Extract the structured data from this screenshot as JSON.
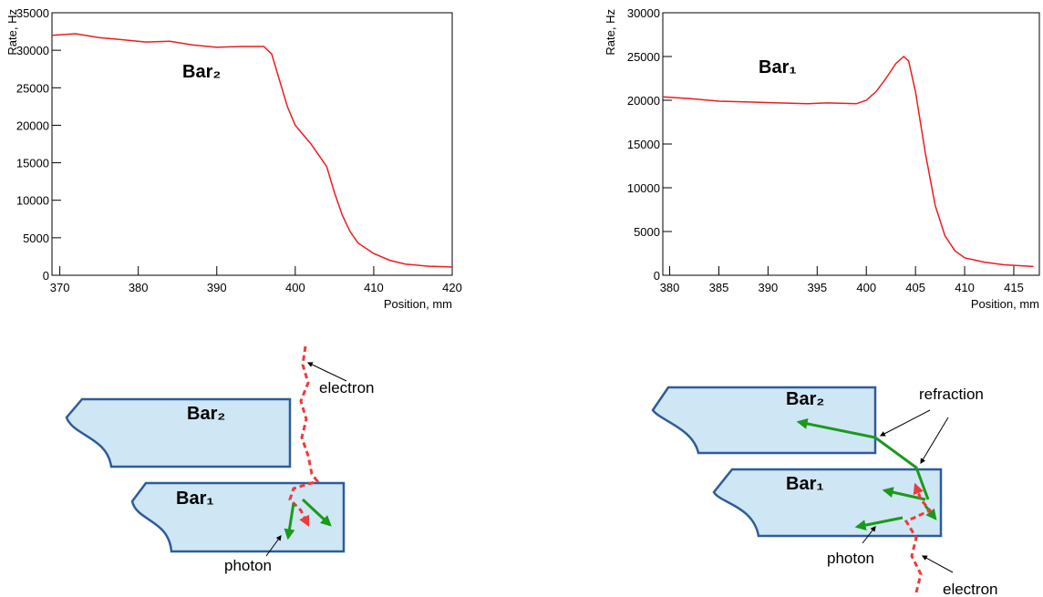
{
  "chart_data": [
    {
      "type": "line",
      "ylabel": "Rate, Hz",
      "xlabel": "Position, mm",
      "annotation": "Bar₂",
      "color": "#ee1c1c",
      "x": [
        369,
        372,
        375,
        378,
        381,
        384,
        387,
        390,
        393,
        396,
        397,
        398,
        399,
        400,
        402,
        404,
        405,
        406,
        407,
        408,
        410,
        412,
        414,
        417,
        420
      ],
      "values": [
        32000,
        32200,
        31700,
        31400,
        31100,
        31200,
        30700,
        30400,
        30500,
        30500,
        29500,
        26000,
        22500,
        20000,
        17500,
        14500,
        11000,
        8000,
        5800,
        4300,
        2900,
        2000,
        1500,
        1200,
        1100
      ],
      "xlim": [
        369,
        420
      ],
      "ylim": [
        0,
        35000
      ],
      "xticks": [
        370,
        380,
        390,
        400,
        410,
        420
      ],
      "yticks": [
        0,
        5000,
        10000,
        15000,
        20000,
        25000,
        30000,
        35000
      ]
    },
    {
      "type": "line",
      "ylabel": "Rate, Hz",
      "xlabel": "Position, mm",
      "annotation": "Bar₁",
      "color": "#ee1c1c",
      "x": [
        379.3,
        382,
        385,
        388,
        391,
        394,
        396,
        399,
        400,
        401,
        402,
        403,
        403.8,
        404.3,
        405,
        406,
        407,
        408,
        409,
        410,
        412,
        414,
        417
      ],
      "values": [
        20400,
        20200,
        19900,
        19800,
        19700,
        19600,
        19700,
        19600,
        20000,
        21000,
        22500,
        24200,
        25000,
        24500,
        21000,
        14000,
        8000,
        4500,
        2800,
        2000,
        1500,
        1200,
        1000
      ],
      "xlim": [
        379.3,
        417.6
      ],
      "ylim": [
        0,
        30000
      ],
      "xticks": [
        380,
        385,
        390,
        395,
        400,
        405,
        410,
        415
      ],
      "yticks": [
        0,
        5000,
        10000,
        15000,
        20000,
        25000,
        30000
      ]
    }
  ],
  "diagrams": [
    {
      "bar_top": "Bar₂",
      "bar_bottom": "Bar₁",
      "electron": "electron",
      "photon": "photon"
    },
    {
      "bar_top": "Bar₂",
      "bar_bottom": "Bar₁",
      "refraction": "refraction",
      "electron": "electron",
      "photon": "photon"
    }
  ]
}
